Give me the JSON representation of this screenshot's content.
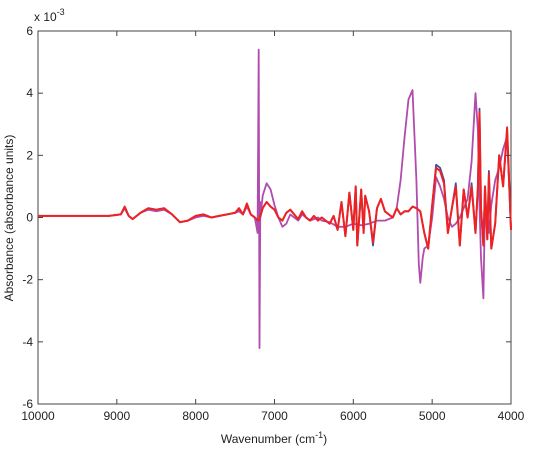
{
  "chart_data": {
    "type": "line",
    "title": "",
    "xlabel": "Wavenumber (cm",
    "xlabel_sup": "-1",
    "xlabel_end": ")",
    "ylabel": "Absorbance (absorbance units)",
    "y_multiplier": "x 10",
    "y_multiplier_exp": "-3",
    "xlim": [
      10000,
      4000
    ],
    "ylim": [
      -6,
      6
    ],
    "x_reversed": true,
    "grid": false,
    "legend": "none",
    "xticks": [
      "10000",
      "9000",
      "8000",
      "7000",
      "6000",
      "5000",
      "4000"
    ],
    "xtick_values": [
      10000,
      9000,
      8000,
      7000,
      6000,
      5000,
      4000
    ],
    "yticks": [
      "6",
      "4",
      "2",
      "0",
      "-2",
      "-4",
      "-6"
    ],
    "ytick_values": [
      6,
      4,
      2,
      0,
      -2,
      -4,
      -6
    ],
    "series": [
      {
        "color": "#3c4fa8",
        "x": [
          10000,
          9500,
          9100,
          8950,
          8900,
          8850,
          8800,
          8700,
          8600,
          8500,
          8400,
          8300,
          8200,
          8100,
          8000,
          7900,
          7800,
          7700,
          7600,
          7500,
          7450,
          7400,
          7350,
          7300,
          7250,
          7200,
          7150,
          7100,
          7050,
          7000,
          6950,
          6900,
          6850,
          6800,
          6750,
          6700,
          6650,
          6600,
          6550,
          6500,
          6450,
          6400,
          6350,
          6300,
          6250,
          6200,
          6150,
          6100,
          6050,
          6000,
          5970,
          5950,
          5900,
          5870,
          5850,
          5800,
          5750,
          5700,
          5650,
          5600,
          5550,
          5500,
          5450,
          5400,
          5350,
          5300,
          5250,
          5200,
          5150,
          5100,
          5050,
          5000,
          4950,
          4900,
          4850,
          4800,
          4750,
          4700,
          4650,
          4600,
          4550,
          4500,
          4450,
          4420,
          4400,
          4380,
          4350,
          4330,
          4300,
          4280,
          4250,
          4200,
          4150,
          4100,
          4050,
          4000
        ],
        "y": [
          0.05,
          0.05,
          0.05,
          0.1,
          0.3,
          0.05,
          -0.05,
          0.15,
          0.3,
          0.25,
          0.3,
          0.1,
          -0.15,
          -0.1,
          0.05,
          0.1,
          0.0,
          0.05,
          0.1,
          0.15,
          0.25,
          0.1,
          0.4,
          0.1,
          0.0,
          -0.2,
          0.3,
          0.5,
          0.35,
          0.25,
          0.0,
          -0.1,
          0.15,
          0.25,
          0.1,
          -0.05,
          0.2,
          0.0,
          -0.1,
          0.05,
          -0.1,
          0.0,
          -0.1,
          -0.2,
          0.05,
          -0.4,
          0.5,
          -0.6,
          0.8,
          -0.4,
          1.0,
          -0.9,
          0.9,
          -0.5,
          0.7,
          0.2,
          -0.9,
          0.3,
          0.6,
          0.2,
          0.1,
          0.0,
          0.3,
          0.1,
          0.2,
          0.2,
          0.35,
          0.3,
          0.2,
          -0.5,
          -1.0,
          0.4,
          1.7,
          1.6,
          1.2,
          -0.5,
          0.3,
          1.1,
          -0.9,
          0.9,
          0.0,
          1.1,
          -0.5,
          1.0,
          3.5,
          0.3,
          -0.9,
          1.0,
          -0.7,
          1.5,
          -1.0,
          -0.2,
          2.0,
          1.0,
          2.8,
          -0.4
        ]
      },
      {
        "color": "#b04cad",
        "x": [
          10000,
          9500,
          9100,
          8950,
          8900,
          8850,
          8800,
          8700,
          8600,
          8500,
          8400,
          8300,
          8200,
          8100,
          8000,
          7900,
          7800,
          7700,
          7600,
          7500,
          7450,
          7400,
          7350,
          7300,
          7250,
          7215,
          7200,
          7190,
          7180,
          7170,
          7150,
          7100,
          7050,
          7000,
          6950,
          6900,
          6850,
          6800,
          6750,
          6700,
          6650,
          6600,
          6550,
          6500,
          6450,
          6400,
          6300,
          6200,
          6100,
          6000,
          5900,
          5800,
          5700,
          5600,
          5500,
          5450,
          5400,
          5350,
          5300,
          5250,
          5200,
          5170,
          5150,
          5120,
          5100,
          5050,
          5000,
          4950,
          4900,
          4850,
          4800,
          4750,
          4700,
          4650,
          4600,
          4550,
          4500,
          4450,
          4420,
          4400,
          4380,
          4350,
          4330,
          4300,
          4280,
          4250,
          4200,
          4150,
          4100,
          4050,
          4000
        ],
        "y": [
          0.05,
          0.05,
          0.05,
          0.1,
          0.3,
          0.05,
          -0.05,
          0.15,
          0.25,
          0.2,
          0.25,
          0.1,
          -0.15,
          -0.1,
          0.0,
          0.05,
          0.0,
          0.05,
          0.1,
          0.15,
          0.2,
          0.1,
          0.35,
          0.1,
          0.0,
          -0.5,
          5.4,
          -4.2,
          0.5,
          0.2,
          0.7,
          1.1,
          0.9,
          0.4,
          0.0,
          -0.3,
          -0.2,
          0.1,
          0.0,
          -0.1,
          0.1,
          0.0,
          -0.1,
          -0.05,
          0.0,
          -0.1,
          -0.15,
          -0.3,
          -0.3,
          -0.2,
          -0.25,
          -0.2,
          -0.1,
          -0.1,
          0.0,
          0.3,
          1.2,
          2.6,
          3.8,
          4.1,
          1.2,
          -1.5,
          -2.1,
          -1.3,
          -1.0,
          -0.9,
          0.0,
          1.3,
          1.0,
          0.6,
          0.0,
          -0.3,
          -0.2,
          0.0,
          0.3,
          0.6,
          1.8,
          4.0,
          2.8,
          0.4,
          -1.3,
          -2.6,
          0.5,
          0.2,
          -0.5,
          0.4,
          1.2,
          1.6,
          2.2,
          2.6,
          -0.4
        ]
      },
      {
        "color": "#ee2222",
        "x": [
          10000,
          9500,
          9100,
          8950,
          8900,
          8850,
          8800,
          8700,
          8600,
          8500,
          8400,
          8300,
          8200,
          8100,
          8000,
          7900,
          7800,
          7700,
          7600,
          7500,
          7450,
          7400,
          7350,
          7300,
          7250,
          7200,
          7150,
          7100,
          7050,
          7000,
          6950,
          6900,
          6850,
          6800,
          6750,
          6700,
          6650,
          6600,
          6550,
          6500,
          6450,
          6400,
          6350,
          6300,
          6250,
          6200,
          6150,
          6100,
          6050,
          6000,
          5970,
          5950,
          5900,
          5870,
          5850,
          5800,
          5750,
          5700,
          5650,
          5600,
          5550,
          5500,
          5450,
          5400,
          5350,
          5300,
          5250,
          5200,
          5150,
          5100,
          5050,
          5000,
          4950,
          4900,
          4850,
          4800,
          4750,
          4700,
          4650,
          4600,
          4550,
          4500,
          4450,
          4420,
          4400,
          4380,
          4350,
          4330,
          4300,
          4280,
          4250,
          4200,
          4150,
          4100,
          4050,
          4000
        ],
        "y": [
          0.05,
          0.05,
          0.05,
          0.1,
          0.35,
          0.05,
          -0.05,
          0.15,
          0.3,
          0.25,
          0.3,
          0.1,
          -0.15,
          -0.1,
          0.05,
          0.1,
          0.0,
          0.05,
          0.1,
          0.15,
          0.3,
          0.1,
          0.45,
          0.1,
          0.0,
          -0.1,
          0.3,
          0.5,
          0.35,
          0.25,
          0.0,
          -0.1,
          0.15,
          0.25,
          0.1,
          -0.05,
          0.2,
          0.0,
          -0.1,
          0.05,
          -0.1,
          0.0,
          -0.1,
          -0.2,
          0.05,
          -0.4,
          0.5,
          -0.6,
          0.8,
          -0.4,
          1.0,
          -0.9,
          0.9,
          -0.5,
          0.7,
          0.2,
          -0.8,
          0.3,
          0.6,
          0.2,
          0.1,
          0.0,
          0.3,
          0.1,
          0.2,
          0.2,
          0.35,
          0.3,
          0.2,
          -0.5,
          -1.0,
          0.4,
          1.6,
          1.5,
          1.1,
          -0.5,
          0.3,
          1.0,
          -0.9,
          0.9,
          0.0,
          1.0,
          -0.5,
          1.0,
          3.4,
          0.3,
          -0.9,
          1.0,
          -0.7,
          1.4,
          -1.0,
          -0.2,
          2.0,
          1.0,
          2.9,
          -0.4
        ]
      }
    ]
  }
}
